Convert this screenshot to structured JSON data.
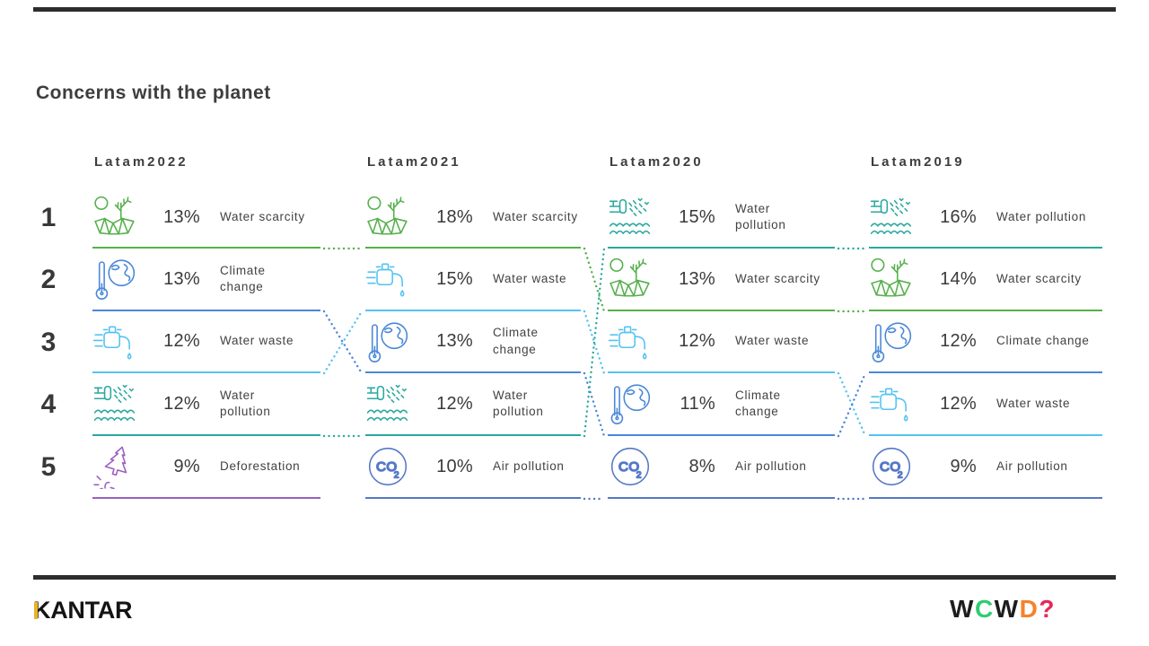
{
  "chart_data": {
    "type": "table",
    "title": "Concerns with the planet",
    "unit": "%",
    "categories": [
      "Latam2022",
      "Latam2021",
      "Latam2020",
      "Latam2019"
    ],
    "rank_labels": [
      "1",
      "2",
      "3",
      "4",
      "5"
    ],
    "series": [
      {
        "name": "Latam2022",
        "items": [
          {
            "rank": 1,
            "concern": "Water scarcity",
            "pct": 13,
            "icon": "water-scarcity",
            "color_key": "green",
            "label_lines": [
              "Water scarcity"
            ]
          },
          {
            "rank": 2,
            "concern": "Climate change",
            "pct": 13,
            "icon": "climate-change",
            "color_key": "blue",
            "label_lines": [
              "Climate",
              "change"
            ]
          },
          {
            "rank": 3,
            "concern": "Water waste",
            "pct": 12,
            "icon": "water-waste",
            "color_key": "lightblue",
            "label_lines": [
              "Water waste"
            ]
          },
          {
            "rank": 4,
            "concern": "Water pollution",
            "pct": 12,
            "icon": "water-pollution",
            "color_key": "teal",
            "label_lines": [
              "Water",
              "pollution"
            ]
          },
          {
            "rank": 5,
            "concern": "Deforestation",
            "pct": 9,
            "icon": "deforestation",
            "color_key": "purple",
            "label_lines": [
              "Deforestation"
            ]
          }
        ]
      },
      {
        "name": "Latam2021",
        "items": [
          {
            "rank": 1,
            "concern": "Water scarcity",
            "pct": 18,
            "icon": "water-scarcity",
            "color_key": "green",
            "label_lines": [
              "Water scarcity"
            ]
          },
          {
            "rank": 2,
            "concern": "Water waste",
            "pct": 15,
            "icon": "water-waste",
            "color_key": "lightblue",
            "label_lines": [
              "Water waste"
            ]
          },
          {
            "rank": 3,
            "concern": "Climate change",
            "pct": 13,
            "icon": "climate-change",
            "color_key": "blue",
            "label_lines": [
              "Climate",
              "change"
            ]
          },
          {
            "rank": 4,
            "concern": "Water pollution",
            "pct": 12,
            "icon": "water-pollution",
            "color_key": "teal",
            "label_lines": [
              "Water",
              "pollution"
            ]
          },
          {
            "rank": 5,
            "concern": "Air pollution",
            "pct": 10,
            "icon": "air-pollution",
            "color_key": "slate",
            "label_lines": [
              "Air pollution"
            ]
          }
        ]
      },
      {
        "name": "Latam2020",
        "items": [
          {
            "rank": 1,
            "concern": "Water pollution",
            "pct": 15,
            "icon": "water-pollution",
            "color_key": "teal",
            "label_lines": [
              "Water",
              "pollution"
            ]
          },
          {
            "rank": 2,
            "concern": "Water scarcity",
            "pct": 13,
            "icon": "water-scarcity",
            "color_key": "green",
            "label_lines": [
              "Water scarcity"
            ]
          },
          {
            "rank": 3,
            "concern": "Water waste",
            "pct": 12,
            "icon": "water-waste",
            "color_key": "lightblue",
            "label_lines": [
              "Water waste"
            ]
          },
          {
            "rank": 4,
            "concern": "Climate change",
            "pct": 11,
            "icon": "climate-change",
            "color_key": "blue",
            "label_lines": [
              "Climate",
              "change"
            ]
          },
          {
            "rank": 5,
            "concern": "Air pollution",
            "pct": 8,
            "icon": "air-pollution",
            "color_key": "slate",
            "label_lines": [
              "Air pollution"
            ]
          }
        ]
      },
      {
        "name": "Latam2019",
        "items": [
          {
            "rank": 1,
            "concern": "Water pollution",
            "pct": 16,
            "icon": "water-pollution",
            "color_key": "teal",
            "label_lines": [
              "Water pollution"
            ]
          },
          {
            "rank": 2,
            "concern": "Water scarcity",
            "pct": 14,
            "icon": "water-scarcity",
            "color_key": "green",
            "label_lines": [
              "Water scarcity"
            ]
          },
          {
            "rank": 3,
            "concern": "Climate change",
            "pct": 12,
            "icon": "climate-change",
            "color_key": "blue",
            "label_lines": [
              "Climate change"
            ]
          },
          {
            "rank": 4,
            "concern": "Water waste",
            "pct": 12,
            "icon": "water-waste",
            "color_key": "lightblue",
            "label_lines": [
              "Water waste"
            ]
          },
          {
            "rank": 5,
            "concern": "Air pollution",
            "pct": 9,
            "icon": "air-pollution",
            "color_key": "slate",
            "label_lines": [
              "Air pollution"
            ]
          }
        ]
      }
    ],
    "transitions": [
      {
        "gap": 0,
        "from": 1,
        "to": 1,
        "color_key": "green"
      },
      {
        "gap": 0,
        "from": 2,
        "to": 3,
        "color_key": "blue"
      },
      {
        "gap": 0,
        "from": 3,
        "to": 2,
        "color_key": "lightblue"
      },
      {
        "gap": 0,
        "from": 4,
        "to": 4,
        "color_key": "teal"
      },
      {
        "gap": 1,
        "from": 1,
        "to": 2,
        "color_key": "green"
      },
      {
        "gap": 1,
        "from": 2,
        "to": 3,
        "color_key": "lightblue"
      },
      {
        "gap": 1,
        "from": 3,
        "to": 4,
        "color_key": "blue"
      },
      {
        "gap": 1,
        "from": 4,
        "to": 1,
        "color_key": "teal"
      },
      {
        "gap": 1,
        "from": 5,
        "to": 5,
        "color_key": "slate"
      },
      {
        "gap": 2,
        "from": 1,
        "to": 1,
        "color_key": "teal"
      },
      {
        "gap": 2,
        "from": 2,
        "to": 2,
        "color_key": "green"
      },
      {
        "gap": 2,
        "from": 3,
        "to": 4,
        "color_key": "lightblue"
      },
      {
        "gap": 2,
        "from": 4,
        "to": 3,
        "color_key": "blue"
      },
      {
        "gap": 2,
        "from": 5,
        "to": 5,
        "color_key": "slate"
      }
    ]
  },
  "colors": {
    "green": "#56b04c",
    "lightblue": "#55c3f0",
    "blue": "#4a87d8",
    "teal": "#2ba89f",
    "purple": "#9c5fc0",
    "slate": "#5578c8",
    "bar": "#2d2d2d",
    "text": "#3d3d3d"
  },
  "footer": {
    "kantar_label": "KANTAR",
    "wcwd_letters": [
      {
        "ch": "W",
        "color": "#1d1d1d"
      },
      {
        "ch": "C",
        "color": "#2fcc71"
      },
      {
        "ch": "W",
        "color": "#1d1d1d"
      },
      {
        "ch": "D",
        "color": "#f5822a"
      },
      {
        "ch": "?",
        "color": "#e7295c"
      }
    ]
  }
}
